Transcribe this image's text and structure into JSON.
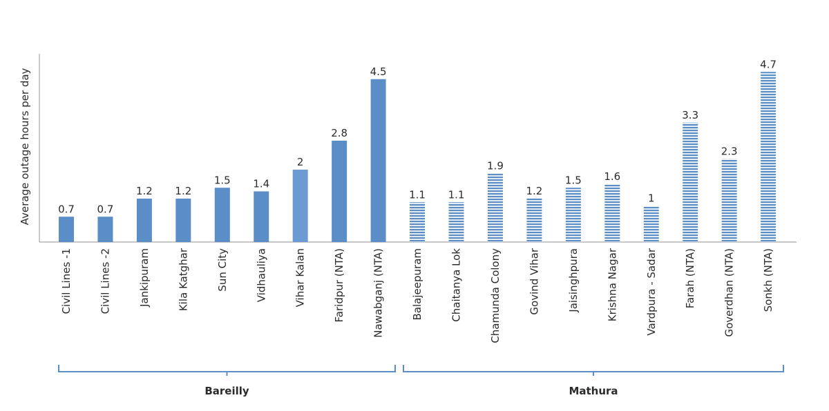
{
  "chart_data": {
    "type": "bar",
    "title": "",
    "xlabel": "",
    "ylabel": "Average outage hours per day",
    "ylim": [
      0,
      5.2
    ],
    "grid": false,
    "categories": [
      "Civil Lines -1",
      "Civil Lines -2",
      "Jankipuram",
      "Kila Katghar",
      "Sun City",
      "Vidhauliya",
      "Vihar Kalan",
      "Faridpur (NTA)",
      "Nawabganj (NTA)",
      "Balajeepuram",
      "Chaitanya Lok",
      "Chamunda Colony",
      "Govind Vihar",
      "Jaisinghpura",
      "Krishna Nagar",
      "Vardpura - Sadar",
      "Farah (NTA)",
      "Goverdhan (NTA)",
      "Sonkh (NTA)"
    ],
    "values": [
      0.7,
      0.7,
      1.2,
      1.2,
      1.5,
      1.4,
      2,
      2.8,
      4.5,
      1.1,
      1.1,
      1.9,
      1.2,
      1.5,
      1.6,
      1,
      3.3,
      2.3,
      4.7
    ],
    "value_labels": [
      "0.7",
      "0.7",
      "1.2",
      "1.2",
      "1.5",
      "1.4",
      "2",
      "2.8",
      "4.5",
      "1.1",
      "1.1",
      "1.9",
      "1.2",
      "1.5",
      "1.6",
      "1",
      "3.3",
      "2.3",
      "4.7"
    ],
    "groups": [
      {
        "name": "Bareilly",
        "start": 0,
        "end": 8,
        "pattern": "solid"
      },
      {
        "name": "Mathura",
        "start": 9,
        "end": 18,
        "pattern": "striped"
      }
    ],
    "colors": {
      "bar": "#5b8ec7",
      "bar_light": "#6b9bd2",
      "axis": "#a6a6a6",
      "bracket": "#5b8ec7",
      "text": "#2b2b2b"
    }
  }
}
